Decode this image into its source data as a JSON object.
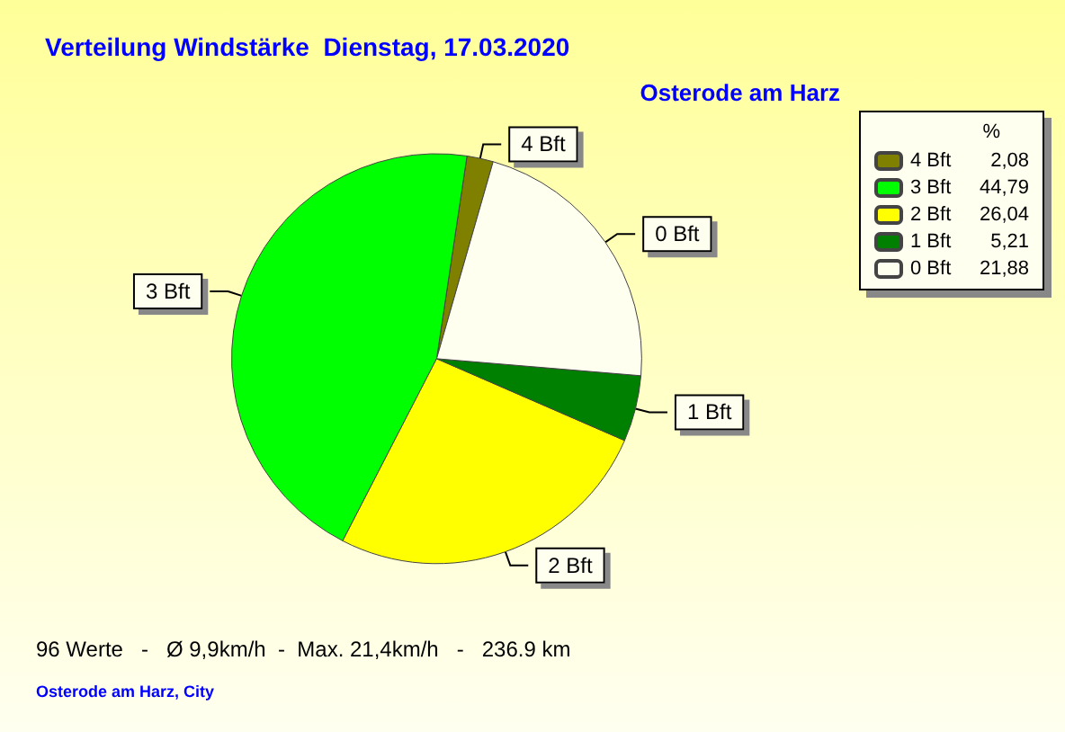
{
  "chart_data": {
    "type": "pie",
    "title": "Verteilung Windstärke  Dienstag, 17.03.2020",
    "subtitle": "Osterode am Harz",
    "categories": [
      "4 Bft",
      "3 Bft",
      "2 Bft",
      "1 Bft",
      "0 Bft"
    ],
    "values": [
      2.08,
      44.79,
      26.04,
      5.21,
      21.88
    ],
    "value_labels": [
      "2,08",
      "44,79",
      "26,04",
      "5,21",
      "21,88"
    ],
    "colors": [
      "#808000",
      "#00ff00",
      "#ffff00",
      "#008000",
      "#fffff0"
    ],
    "legend": "top right",
    "legend_title": "%",
    "annotations": [
      "96 Werte   -   Ø 9,9km/h  -  Max. 21,4km/h   -   236.9 km",
      "Osterode am Harz, City"
    ]
  }
}
